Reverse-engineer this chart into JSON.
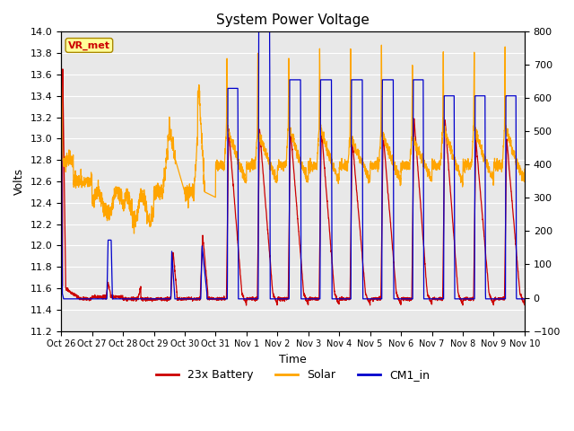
{
  "title": "System Power Voltage",
  "xlabel": "Time",
  "ylabel_left": "Volts",
  "ylim_left": [
    11.2,
    14.0
  ],
  "ylim_right": [
    -100,
    800
  ],
  "xtick_labels": [
    "Oct 26",
    "Oct 27",
    "Oct 28",
    "Oct 29",
    "Oct 30",
    "Oct 31",
    "Nov 1",
    "Nov 2",
    "Nov 3",
    "Nov 4",
    "Nov 5",
    "Nov 6",
    "Nov 7",
    "Nov 8",
    "Nov 9",
    "Nov 10"
  ],
  "yticks_left": [
    11.2,
    11.4,
    11.6,
    11.8,
    12.0,
    12.2,
    12.4,
    12.6,
    12.8,
    13.0,
    13.2,
    13.4,
    13.6,
    13.8,
    14.0
  ],
  "yticks_right": [
    -100,
    0,
    100,
    200,
    300,
    400,
    500,
    600,
    700,
    800
  ],
  "color_battery": "#CC0000",
  "color_solar": "#FFA500",
  "color_cm1": "#0000CC",
  "legend_labels": [
    "23x Battery",
    "Solar",
    "CM1_in"
  ],
  "annotation_text": "VR_met",
  "annotation_color": "#CC0000",
  "annotation_bg": "#FFFF99",
  "bg_color": "#E8E8E8",
  "grid_color": "#FFFFFF",
  "n_days": 15,
  "figsize": [
    6.4,
    4.8
  ],
  "dpi": 100
}
